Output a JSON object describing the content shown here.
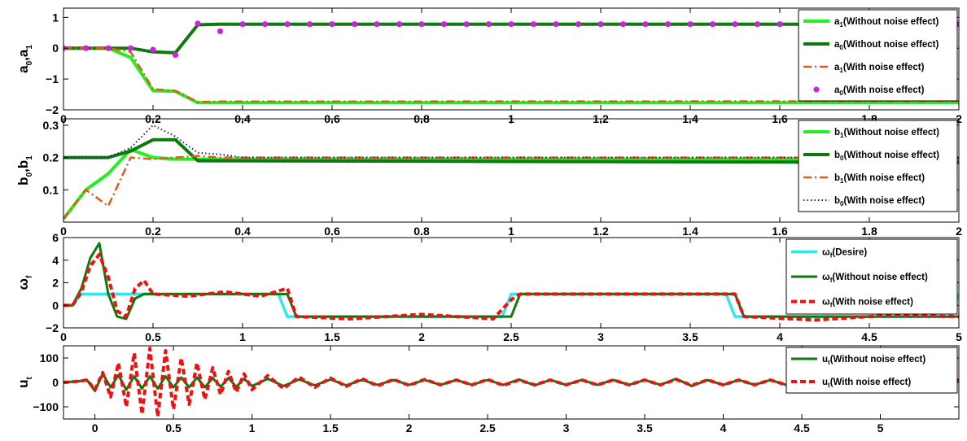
{
  "chart_data": [
    {
      "type": "line",
      "panel": "a",
      "ylabel": "a0,a1",
      "xlim": [
        0,
        2
      ],
      "ylim": [
        -2,
        1.3
      ],
      "xticks": [
        0,
        0.2,
        0.4,
        0.6,
        0.8,
        1,
        1.2,
        1.4,
        1.6,
        1.8,
        2
      ],
      "xtick_labels": [
        "0",
        "0.2",
        "0.4",
        "0.6",
        "0.8",
        "1",
        "1.2",
        "1.4",
        "1.6",
        "1.8",
        "2"
      ],
      "yticks": [
        -2,
        -1,
        0,
        1
      ],
      "ytick_labels": [
        "−2",
        "−1",
        "0",
        "1"
      ],
      "legend_position": "top-right",
      "series": [
        {
          "name": "a1(Without noise effect)",
          "base": "a",
          "sub": "1",
          "rest": "(Without noise effect)",
          "color": "#22ee22",
          "style": "solid",
          "width": 4,
          "x": [
            0,
            0.1,
            0.15,
            0.2,
            0.25,
            0.3,
            0.35,
            2
          ],
          "y": [
            0,
            0,
            -0.3,
            -1.38,
            -1.4,
            -1.77,
            -1.77,
            -1.77
          ]
        },
        {
          "name": "a0(Without noise effect)",
          "base": "a",
          "sub": "0",
          "rest": "(Without noise effect)",
          "color": "#0c7a0c",
          "style": "solid",
          "width": 4,
          "x": [
            0,
            0.15,
            0.2,
            0.25,
            0.3,
            0.35,
            2
          ],
          "y": [
            0,
            0,
            -0.12,
            -0.15,
            0.76,
            0.78,
            0.78
          ]
        },
        {
          "name": "a1(With noise effect)",
          "base": "a",
          "sub": "1",
          "rest": "(With noise effect)",
          "color": "#e05a1c",
          "style": "dashdot",
          "width": 2.5,
          "x": [
            0,
            0.1,
            0.15,
            0.2,
            0.25,
            0.3,
            0.35,
            2
          ],
          "y": [
            0,
            0,
            -0.12,
            -1.33,
            -1.38,
            -1.74,
            -1.73,
            -1.72
          ]
        },
        {
          "name": "a0(With noise effect)",
          "base": "a",
          "sub": "0",
          "rest": "(With noise effect)",
          "color": "#cc22dd",
          "style": "dots",
          "x": [
            0,
            0.05,
            0.1,
            0.15,
            0.2,
            0.25,
            0.3,
            0.35,
            0.4,
            0.45,
            0.5,
            0.55,
            0.6,
            0.65,
            0.7,
            0.75,
            0.8,
            0.85,
            0.9,
            0.95,
            1,
            1.05,
            1.1,
            1.15,
            1.2,
            1.25,
            1.3,
            1.35,
            1.4,
            1.45,
            1.5,
            1.55,
            1.6,
            1.65,
            1.7,
            1.75,
            1.8,
            1.85,
            1.9,
            1.95,
            2
          ],
          "y": [
            0,
            0,
            0,
            0,
            -0.05,
            -0.22,
            0.8,
            0.55,
            0.78,
            0.78,
            0.78,
            0.78,
            0.78,
            0.78,
            0.78,
            0.78,
            0.78,
            0.78,
            0.78,
            0.78,
            0.78,
            0.78,
            0.78,
            0.78,
            0.78,
            0.78,
            0.78,
            0.78,
            0.78,
            0.78,
            0.78,
            0.78,
            0.78,
            0.78,
            0.78,
            0.78,
            0.78,
            0.78,
            0.78,
            0.78,
            0.78
          ]
        }
      ]
    },
    {
      "type": "line",
      "panel": "b",
      "ylabel": "b0,b1",
      "xlim": [
        0,
        2
      ],
      "ylim": [
        0,
        0.32
      ],
      "xticks": [
        0,
        0.2,
        0.4,
        0.6,
        0.8,
        1,
        1.2,
        1.4,
        1.6,
        1.8,
        2
      ],
      "xtick_labels": [
        "0",
        "0.2",
        "0.4",
        "0.6",
        "0.8",
        "1",
        "1.2",
        "1.4",
        "1.6",
        "1.8",
        "2"
      ],
      "yticks": [
        0.1,
        0.2,
        0.3
      ],
      "ytick_labels": [
        "0.1",
        "0.2",
        "0.3"
      ],
      "legend_position": "top-right",
      "series": [
        {
          "name": "b1(Without noise effect)",
          "base": "b",
          "sub": "1",
          "rest": "(Without noise effect)",
          "color": "#22ee22",
          "style": "solid",
          "width": 4,
          "x": [
            0,
            0.05,
            0.1,
            0.15,
            0.2,
            0.25,
            0.3,
            2
          ],
          "y": [
            0.01,
            0.1,
            0.15,
            0.225,
            0.2,
            0.195,
            0.195,
            0.195
          ]
        },
        {
          "name": "b0(Without noise effect)",
          "base": "b",
          "sub": "0",
          "rest": "(Without noise effect)",
          "color": "#0c7a0c",
          "style": "solid",
          "width": 4,
          "x": [
            0,
            0.1,
            0.15,
            0.2,
            0.25,
            0.3,
            2
          ],
          "y": [
            0.2,
            0.2,
            0.22,
            0.255,
            0.255,
            0.19,
            0.185
          ]
        },
        {
          "name": "b1(With noise effect)",
          "base": "b",
          "sub": "1",
          "rest": "(With noise effect)",
          "color": "#e05a1c",
          "style": "dashdot",
          "width": 2.5,
          "x": [
            0,
            0.05,
            0.1,
            0.15,
            0.2,
            0.25,
            0.3,
            0.35,
            0.4,
            2
          ],
          "y": [
            0.01,
            0.1,
            0.05,
            0.2,
            0.195,
            0.2,
            0.205,
            0.2,
            0.2,
            0.2
          ]
        },
        {
          "name": "b0(With noise effect)",
          "base": "b",
          "sub": "0",
          "rest": "(With noise effect)",
          "color": "#202080",
          "style": "dotted",
          "width": 2,
          "x": [
            0,
            0.1,
            0.15,
            0.2,
            0.25,
            0.3,
            0.35,
            0.4,
            2
          ],
          "y": [
            0.2,
            0.2,
            0.23,
            0.3,
            0.265,
            0.215,
            0.21,
            0.2,
            0.2
          ]
        }
      ]
    },
    {
      "type": "line",
      "panel": "w",
      "ylabel": "ωf",
      "xlim": [
        0,
        5
      ],
      "ylim": [
        -2,
        6
      ],
      "xticks": [
        0,
        0.5,
        1,
        1.5,
        2,
        2.5,
        3,
        3.5,
        4,
        4.5,
        5
      ],
      "xtick_labels": [
        "0",
        "0.5",
        "1",
        "1.5",
        "2",
        "2.5",
        "3",
        "3.5",
        "4",
        "4.5",
        "5"
      ],
      "yticks": [
        -2,
        0,
        2,
        4,
        6
      ],
      "ytick_labels": [
        "−2",
        "0",
        "2",
        "4",
        "6"
      ],
      "legend_position": "top-right",
      "series": [
        {
          "name": "ωf(Desire)",
          "base": "ω",
          "sub": "f",
          "rest": "(Desire)",
          "color": "#33e6ee",
          "style": "solid",
          "width": 3.5,
          "x": [
            0,
            0.05,
            0.1,
            1.2,
            1.25,
            2.45,
            2.5,
            3.7,
            3.75,
            4.95,
            5
          ],
          "y": [
            0,
            0,
            1,
            1,
            -1,
            -1,
            1,
            1,
            -1,
            -1,
            1
          ]
        },
        {
          "name": "ωf(Without noise effect)",
          "base": "ω",
          "sub": "f",
          "rest": "(Without noise effect)",
          "color": "#0c7a0c",
          "style": "solid",
          "width": 3,
          "x": [
            0,
            0.05,
            0.1,
            0.15,
            0.2,
            0.25,
            0.3,
            0.35,
            0.4,
            0.45,
            0.5,
            1.25,
            1.3,
            2.5,
            2.55,
            3.75,
            3.8,
            5
          ],
          "y": [
            0,
            0,
            1.5,
            4.2,
            5.5,
            1,
            -1,
            -1.2,
            0.6,
            1,
            1,
            1,
            -1,
            -1,
            1,
            1,
            -1,
            -1
          ]
        },
        {
          "name": "ωf(With noise effect)",
          "base": "ω",
          "sub": "f",
          "rest": "(With noise effect)",
          "color": "#ee1111",
          "style": "dashed",
          "width": 4,
          "x": [
            0,
            0.05,
            0.1,
            0.15,
            0.2,
            0.25,
            0.3,
            0.35,
            0.4,
            0.45,
            0.5,
            0.7,
            0.9,
            1.1,
            1.25,
            1.3,
            1.6,
            2.0,
            2.4,
            2.5,
            2.55,
            3.0,
            3.5,
            3.75,
            3.8,
            4.2,
            4.6,
            5
          ],
          "y": [
            0,
            0,
            1.2,
            3.5,
            4.5,
            2.5,
            -0.5,
            -1,
            1.5,
            2.2,
            1,
            0.8,
            1.2,
            0.8,
            1.5,
            -1,
            -1.2,
            -0.8,
            -1.2,
            0.5,
            1,
            1,
            1,
            1,
            -1,
            -1.3,
            -0.9,
            -1
          ]
        }
      ]
    },
    {
      "type": "line",
      "panel": "u",
      "ylabel": "ut",
      "xlim": [
        -0.2,
        5.5
      ],
      "ylim": [
        -150,
        150
      ],
      "xticks": [
        0,
        0.5,
        1,
        1.5,
        2,
        2.5,
        3,
        3.5,
        4,
        4.5,
        5
      ],
      "xtick_labels": [
        "0",
        "0.5",
        "1",
        "1.5",
        "2",
        "2.5",
        "3",
        "3.5",
        "4",
        "4.5",
        "5"
      ],
      "yticks": [
        -100,
        0,
        100
      ],
      "ytick_labels": [
        "−100",
        "0",
        "100"
      ],
      "legend_position": "top-right",
      "series": [
        {
          "name": "ut(Without noise effect)",
          "base": "u",
          "sub": "t",
          "rest": "(Without noise effect)",
          "color": "#0c7a0c",
          "style": "solid",
          "width": 3,
          "x": [
            -0.2,
            -0.1,
            -0.05,
            0,
            0.05,
            0.1,
            0.15,
            0.2,
            0.25,
            0.3,
            0.35,
            0.4,
            0.45,
            0.5,
            0.55,
            0.6,
            0.65,
            0.7,
            0.75,
            0.8,
            0.85,
            0.9,
            0.95,
            1,
            1.1,
            1.2,
            1.3,
            1.4,
            1.5,
            1.6,
            1.7,
            1.8,
            1.9,
            2,
            2.1,
            2.2,
            2.3,
            2.4,
            2.5,
            2.6,
            2.7,
            2.8,
            2.9,
            3,
            3.1,
            3.2,
            3.3,
            3.4,
            3.5,
            3.6,
            3.7,
            3.8,
            3.9,
            4,
            4.1,
            4.2,
            4.3,
            4.4,
            4.5,
            4.6,
            4.7,
            4.8,
            4.9,
            5,
            5.1,
            5.2,
            5.3,
            5.4,
            5.5
          ],
          "y": [
            0,
            5,
            10,
            -35,
            35,
            -20,
            30,
            -30,
            25,
            -25,
            25,
            -25,
            25,
            -20,
            20,
            -20,
            20,
            -20,
            18,
            -18,
            18,
            -18,
            15,
            -15,
            15,
            -15,
            12,
            -12,
            12,
            -12,
            10,
            -10,
            10,
            -10,
            10,
            -10,
            10,
            -10,
            10,
            -10,
            12,
            -12,
            10,
            -10,
            10,
            -10,
            10,
            -10,
            10,
            -10,
            15,
            -15,
            10,
            -10,
            10,
            -10,
            10,
            -10,
            10,
            -10,
            10,
            -10,
            10,
            -10,
            10,
            -10,
            10,
            -10,
            10
          ]
        },
        {
          "name": "ut(With noise effect)",
          "base": "u",
          "sub": "t",
          "rest": "(With noise effect)",
          "color": "#ee1111",
          "style": "dashed",
          "width": 4,
          "x": [
            -0.2,
            -0.1,
            -0.05,
            0,
            0.05,
            0.1,
            0.15,
            0.2,
            0.25,
            0.3,
            0.35,
            0.4,
            0.45,
            0.5,
            0.55,
            0.6,
            0.65,
            0.7,
            0.75,
            0.8,
            0.85,
            0.9,
            0.95,
            1,
            1.1,
            1.2,
            1.3,
            1.4,
            1.5,
            1.6,
            1.7,
            1.8,
            1.9,
            2,
            2.1,
            2.2,
            2.3,
            2.4,
            2.5,
            2.6,
            2.7,
            2.8,
            2.9,
            3,
            3.1,
            3.2,
            3.3,
            3.4,
            3.5,
            3.6,
            3.7,
            3.8,
            3.9,
            4,
            4.1,
            4.2,
            4.3,
            4.4,
            4.5,
            4.6,
            4.7,
            4.8,
            4.9,
            5,
            5.1,
            5.2,
            5.3,
            5.4,
            5.5
          ],
          "y": [
            0,
            5,
            10,
            -30,
            40,
            -60,
            80,
            -100,
            120,
            -130,
            140,
            -140,
            130,
            -110,
            100,
            -90,
            80,
            -70,
            60,
            -50,
            45,
            -40,
            35,
            -30,
            28,
            -25,
            22,
            -20,
            18,
            -16,
            15,
            -14,
            12,
            -12,
            12,
            -10,
            10,
            -10,
            12,
            -12,
            10,
            -10,
            10,
            -10,
            10,
            -10,
            10,
            -10,
            10,
            -10,
            12,
            -12,
            10,
            -10,
            10,
            -10,
            10,
            -10,
            10,
            -10,
            10,
            -10,
            10,
            -10,
            10,
            -10,
            10,
            -10,
            10
          ]
        }
      ]
    }
  ]
}
